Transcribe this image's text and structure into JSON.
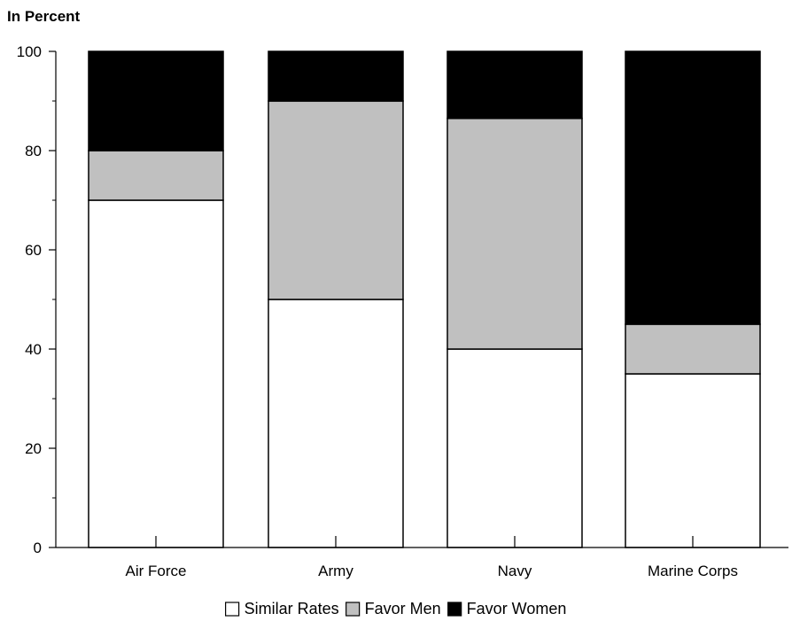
{
  "chart_data": {
    "type": "bar",
    "stacked": true,
    "y_unit_label": "In Percent",
    "categories": [
      "Air Force",
      "Army",
      "Navy",
      "Marine Corps"
    ],
    "series": [
      {
        "name": "Similar Rates",
        "color": "#ffffff",
        "values": [
          70,
          50,
          40,
          35
        ]
      },
      {
        "name": "Favor Men",
        "color": "#c0c0c0",
        "values": [
          10,
          40,
          46.5,
          10
        ]
      },
      {
        "name": "Favor Women",
        "color": "#000000",
        "values": [
          20,
          10,
          13.5,
          55
        ]
      }
    ],
    "ylim": [
      0,
      100
    ],
    "y_ticks": [
      0,
      20,
      40,
      60,
      80,
      100
    ],
    "grid": false,
    "legend_position": "bottom-center"
  }
}
